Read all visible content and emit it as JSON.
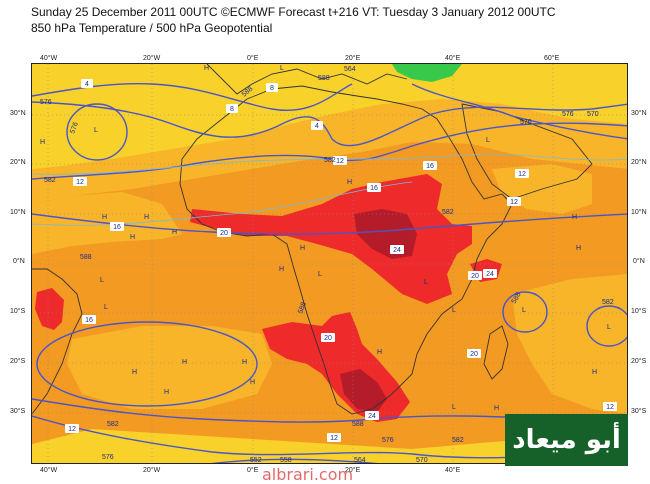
{
  "header": {
    "line1": "Sunday 25 December 2011 00UTC ©ECMWF Forecast t+216 VT: Tuesday 3 January 2012 00UTC",
    "line2": "850 hPa Temperature / 500 hPa Geopotential"
  },
  "axes": {
    "lon_ticks": [
      "40°W",
      "20°W",
      "0°E",
      "20°E",
      "40°E",
      "60°E"
    ],
    "lat_ticks": [
      "30°N",
      "20°N",
      "10°N",
      "0°N",
      "10°S",
      "20°S",
      "30°S"
    ]
  },
  "contour_labels": {
    "temperature": [
      "4",
      "8",
      "12",
      "16",
      "20",
      "24",
      "4",
      "12",
      "16",
      "20",
      "24",
      "12",
      "16",
      "16",
      "20",
      "24",
      "12",
      "12",
      "12",
      "12",
      "8",
      "20"
    ],
    "geopotential": [
      "576",
      "576",
      "582",
      "582",
      "588",
      "588",
      "588",
      "582",
      "576",
      "576",
      "564",
      "570",
      "576",
      "582",
      "588",
      "588",
      "588",
      "552",
      "558",
      "564",
      "570",
      "576",
      "582",
      "582"
    ]
  },
  "pressure_markers": [
    "H",
    "L"
  ],
  "colors": {
    "cold_green": "#39c94a",
    "cool_yellow": "#f8d12a",
    "warm_lightorange": "#f8b52a",
    "warm_orange": "#f2892a",
    "hot_red": "#ee2a2a",
    "hottest_darkred": "#b51c2a",
    "geopotential_line": "#4b55c8"
  },
  "logo": {
    "text": "أبو ميعاد"
  },
  "watermark": {
    "text": "albrari.com"
  }
}
